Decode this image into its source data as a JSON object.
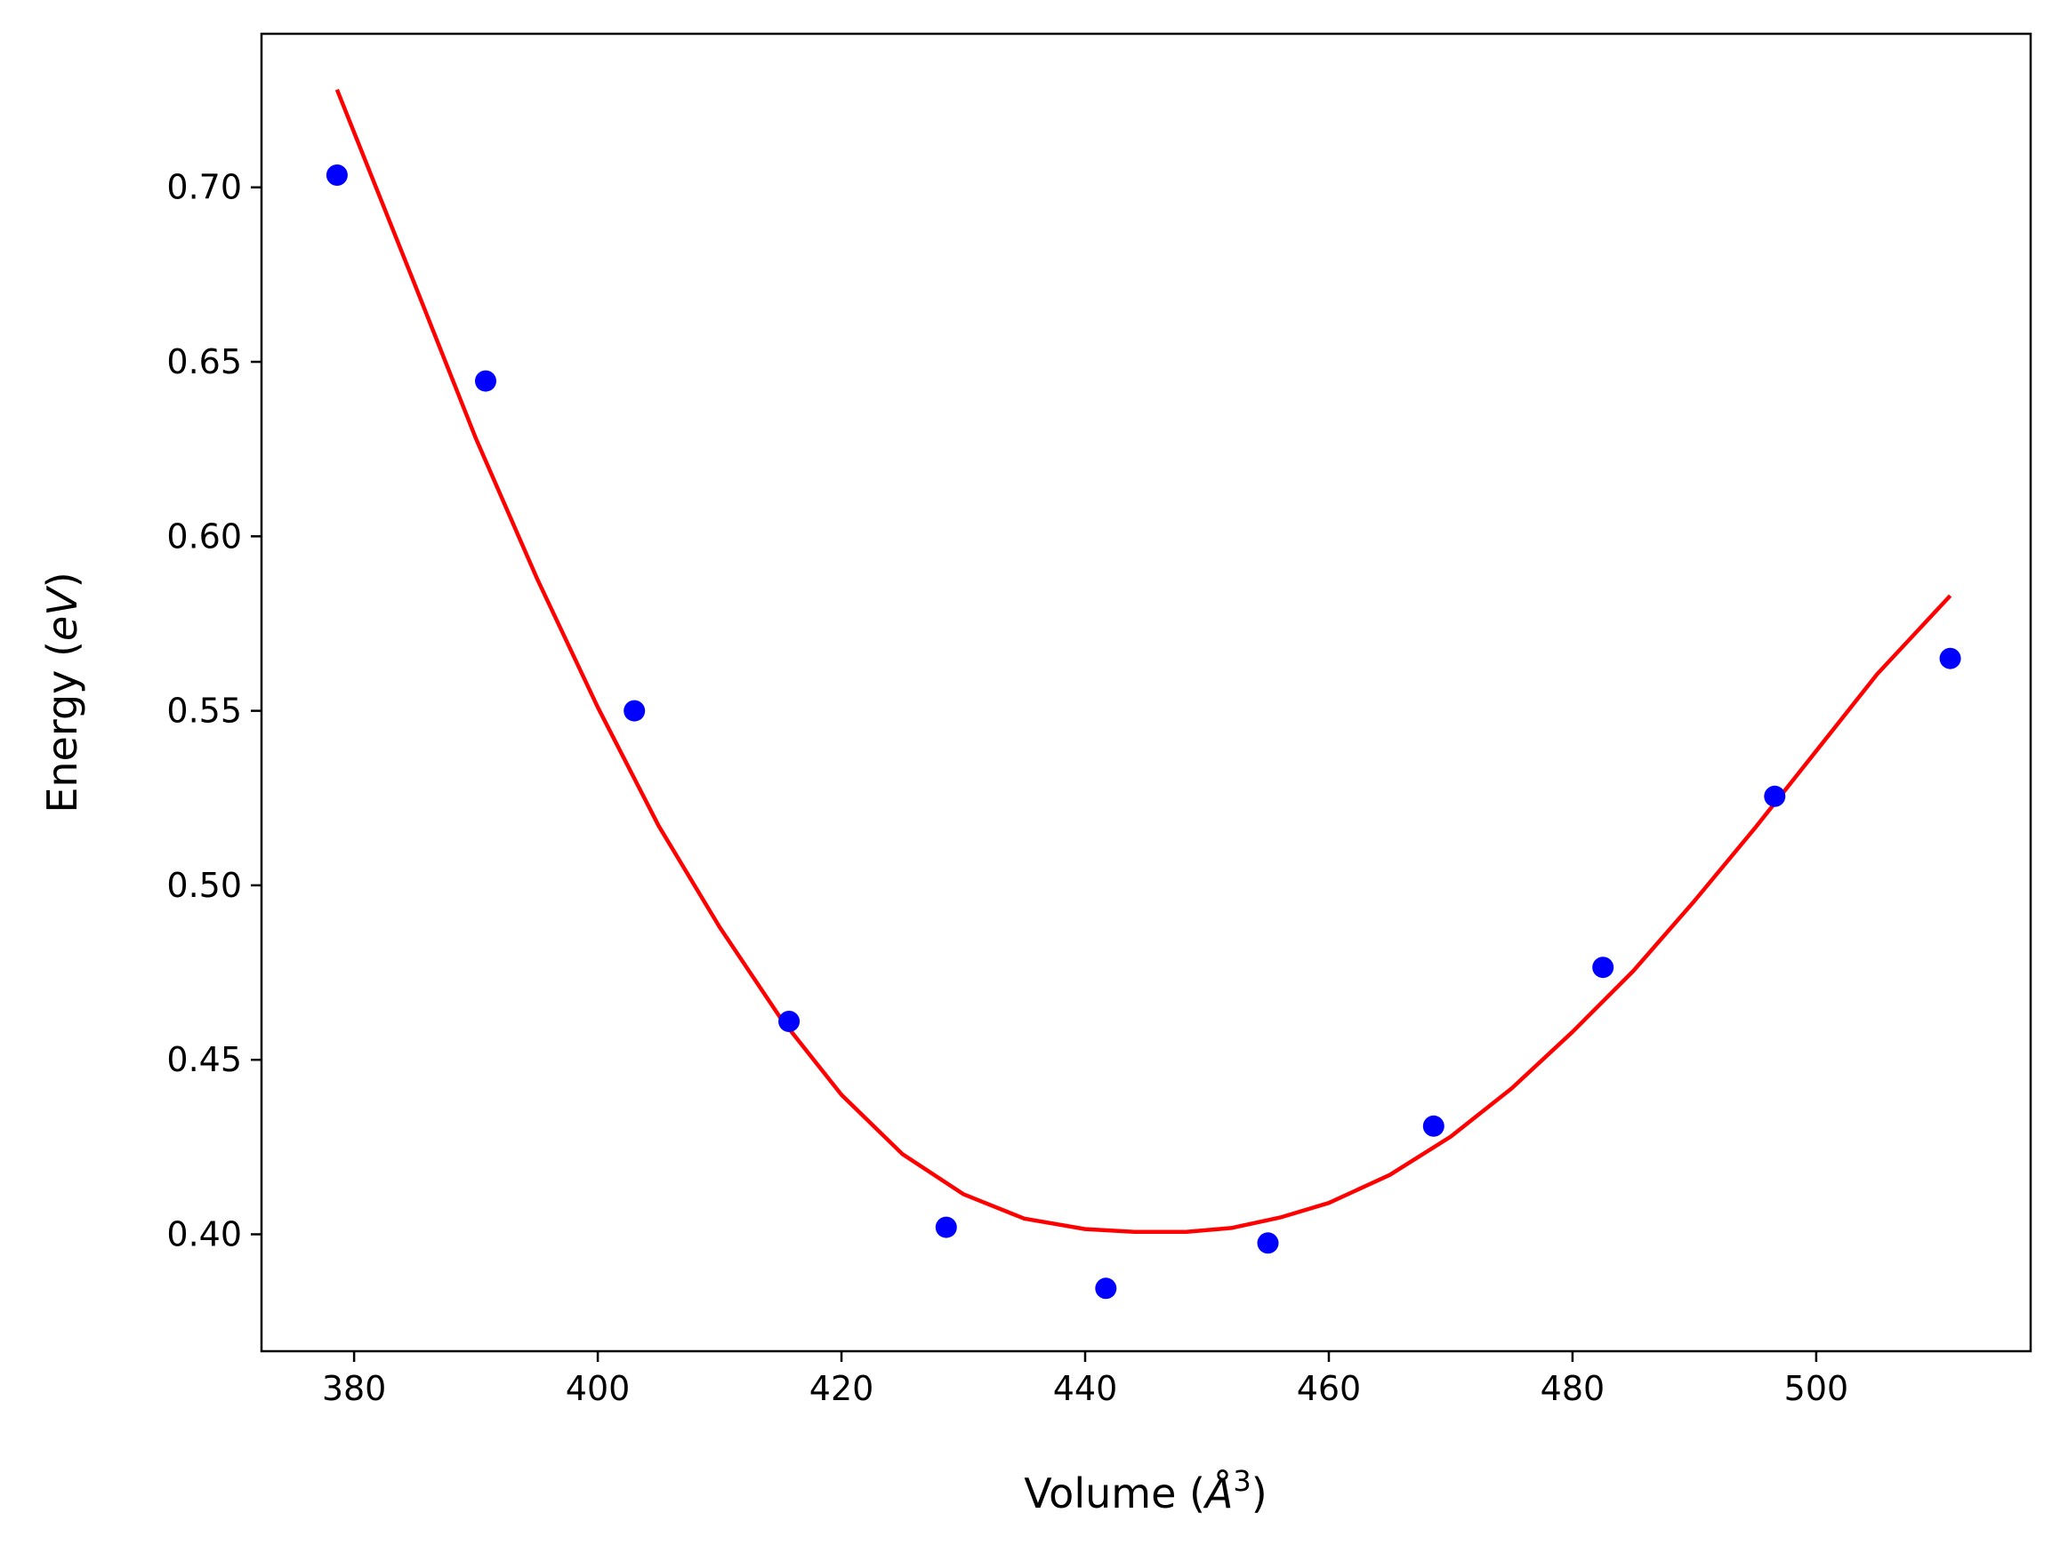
{
  "chart_data": {
    "type": "scatter",
    "xlabel_main": "Volume (",
    "xlabel_unit": "Å",
    "xlabel_sup": "3",
    "xlabel_close": ")",
    "ylabel_main": "Energy (",
    "ylabel_unit": "eV",
    "ylabel_close": ")",
    "xlim": [
      372.4,
      517.6
    ],
    "ylim": [
      0.3665,
      0.744
    ],
    "xticks": [
      380,
      400,
      420,
      440,
      460,
      480,
      500
    ],
    "xtick_labels": [
      "380",
      "400",
      "420",
      "440",
      "460",
      "480",
      "500"
    ],
    "yticks": [
      0.4,
      0.45,
      0.5,
      0.55,
      0.6,
      0.65,
      0.7
    ],
    "ytick_labels": [
      "0.40",
      "0.45",
      "0.50",
      "0.55",
      "0.60",
      "0.65",
      "0.70"
    ],
    "grid": false,
    "series": [
      {
        "type": "scatter",
        "color": "#0000ff",
        "x": [
          378.6,
          390.8,
          403.0,
          415.7,
          428.6,
          441.7,
          455.0,
          468.6,
          482.5,
          496.6,
          511.0
        ],
        "y": [
          0.7035,
          0.6445,
          0.55,
          0.461,
          0.402,
          0.3845,
          0.3975,
          0.431,
          0.4765,
          0.5255,
          0.565
        ]
      },
      {
        "type": "line",
        "color": "#ff0000",
        "x": [
          378.6,
          385,
          390,
          395,
          400,
          405,
          410,
          415,
          420,
          425,
          430,
          435,
          440,
          444,
          448.3,
          452,
          456,
          460,
          465,
          470,
          475,
          480,
          485,
          490,
          495,
          500,
          505,
          511.0
        ],
        "y": [
          0.728,
          0.672,
          0.628,
          0.588,
          0.551,
          0.517,
          0.488,
          0.462,
          0.44,
          0.423,
          0.4115,
          0.4045,
          0.4015,
          0.4007,
          0.4007,
          0.4018,
          0.4048,
          0.409,
          0.417,
          0.428,
          0.4418,
          0.458,
          0.4755,
          0.4955,
          0.5165,
          0.5385,
          0.5605,
          0.583
        ]
      }
    ]
  }
}
